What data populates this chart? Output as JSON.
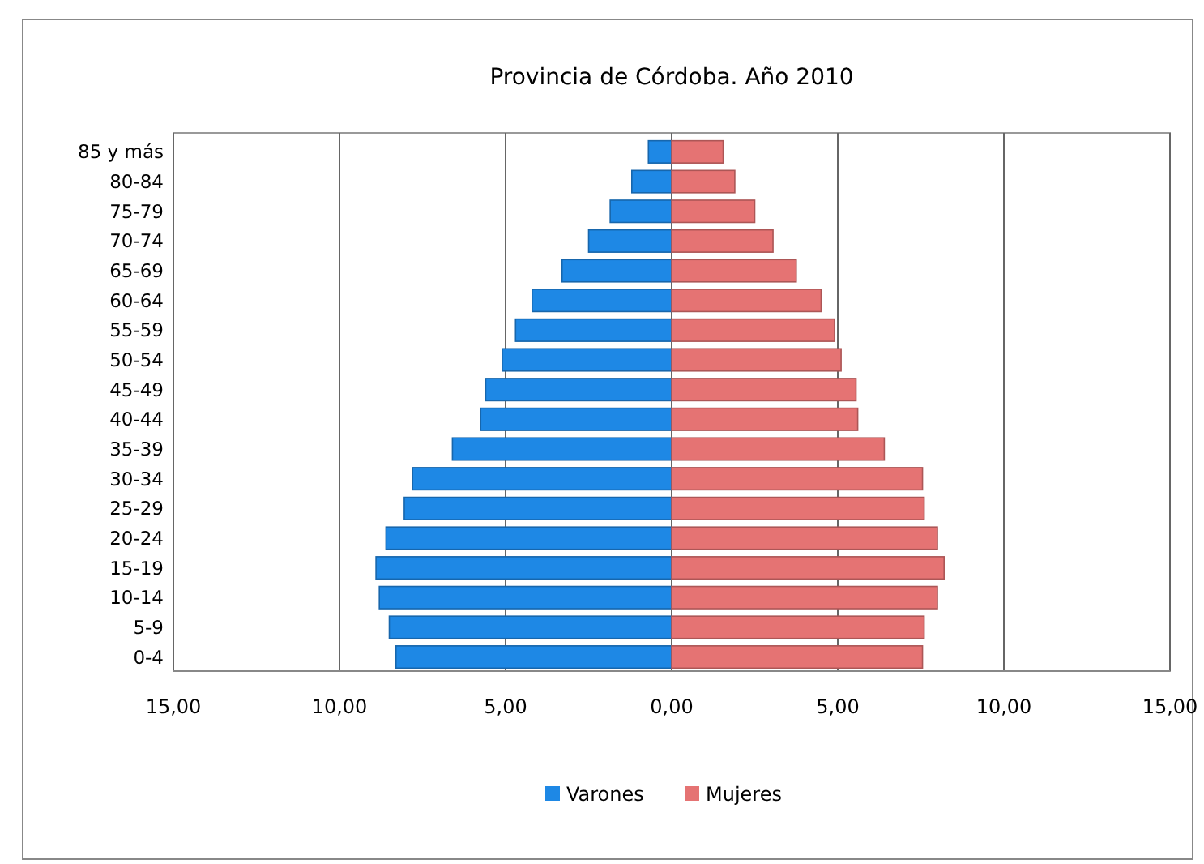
{
  "chart_data": {
    "type": "bar",
    "orientation": "horizontal",
    "title": "Provincia de Córdoba. Año 2010",
    "categories": [
      "85 y más",
      "80-84",
      "75-79",
      "70-74",
      "65-69",
      "60-64",
      "55-59",
      "50-54",
      "45-49",
      "40-44",
      "35-39",
      "30-34",
      "25-29",
      "20-24",
      "15-19",
      "10-14",
      "5-9",
      "0-4"
    ],
    "series": [
      {
        "name": "Varones",
        "color": "#1e88e5",
        "values": [
          -0.7,
          -1.2,
          -1.85,
          -2.5,
          -3.3,
          -4.2,
          -4.7,
          -5.1,
          -5.6,
          -5.75,
          -6.6,
          -7.8,
          -8.05,
          -8.6,
          -8.9,
          -8.8,
          -8.5,
          -8.3
        ]
      },
      {
        "name": "Mujeres",
        "color": "#e57373",
        "values": [
          1.55,
          1.9,
          2.5,
          3.05,
          3.75,
          4.5,
          4.9,
          5.1,
          5.55,
          5.6,
          6.4,
          7.55,
          7.6,
          8.0,
          8.2,
          8.0,
          7.6,
          7.55
        ]
      }
    ],
    "xlim": [
      -15,
      15
    ],
    "xticks": [
      {
        "value": -15,
        "label": "15,00"
      },
      {
        "value": -10,
        "label": "10,00"
      },
      {
        "value": -5,
        "label": "5,00"
      },
      {
        "value": 0,
        "label": "0,00"
      },
      {
        "value": 5,
        "label": "5,00"
      },
      {
        "value": 10,
        "label": "10,00"
      },
      {
        "value": 15,
        "label": "15,00"
      }
    ],
    "stacked": true,
    "grid": "x",
    "legend": "bottom"
  }
}
